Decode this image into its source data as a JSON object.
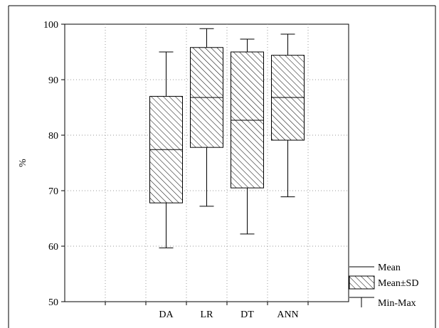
{
  "chart_data": {
    "type": "boxplot",
    "ylabel": "%",
    "ylim": [
      50,
      100
    ],
    "yticks": [
      50,
      60,
      70,
      80,
      90,
      100
    ],
    "yticks_text": [
      "50",
      "60",
      "70",
      "80",
      "90",
      "100"
    ],
    "grid": true,
    "legend_position": "bottom-right",
    "categories": [
      "DA",
      "LR",
      "DT",
      "ANN"
    ],
    "series": [
      {
        "category": "DA",
        "mean": 77.4,
        "sd_low": 67.8,
        "sd_high": 87.0,
        "min": 59.7,
        "max": 95.0
      },
      {
        "category": "LR",
        "mean": 86.8,
        "sd_low": 77.8,
        "sd_high": 95.8,
        "min": 67.2,
        "max": 99.2
      },
      {
        "category": "DT",
        "mean": 82.7,
        "sd_low": 70.5,
        "sd_high": 95.0,
        "min": 62.2,
        "max": 97.3
      },
      {
        "category": "ANN",
        "mean": 86.8,
        "sd_low": 79.1,
        "sd_high": 94.4,
        "min": 68.9,
        "max": 98.2
      }
    ],
    "legend": {
      "mean": "Mean",
      "sd": "Mean±SD",
      "range": "Min-Max"
    },
    "box_fill": "hatched"
  }
}
